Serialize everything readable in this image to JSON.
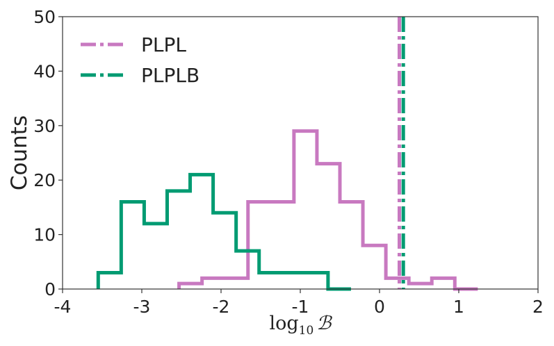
{
  "chart_data": {
    "type": "histogram",
    "title": "",
    "xlabel": "log10 ℬ",
    "xlabel_main": "log",
    "xlabel_sub": "10",
    "xlabel_symbol": "ℬ",
    "ylabel": "Counts",
    "xlim": [
      -4,
      2
    ],
    "ylim": [
      0,
      50
    ],
    "xticks": [
      -4,
      -3,
      -2,
      -1,
      0,
      1,
      2
    ],
    "xtick_labels": [
      "-4",
      "-3",
      "-2",
      "-1",
      "0",
      "1",
      "2"
    ],
    "yticks": [
      0,
      10,
      20,
      30,
      40,
      50
    ],
    "ytick_labels": [
      "0",
      "10",
      "20",
      "30",
      "40",
      "50"
    ],
    "grid": false,
    "legend_position": "top-left",
    "series": [
      {
        "name": "PLPL",
        "color": "#c879c0",
        "style": "step",
        "bin_edges": [
          -2.53,
          -2.24,
          -1.95,
          -1.66,
          -1.37,
          -1.08,
          -0.79,
          -0.5,
          -0.21,
          0.08,
          0.37,
          0.66,
          0.95,
          1.24
        ],
        "counts": [
          1,
          2,
          2,
          16,
          16,
          29,
          23,
          16,
          8,
          2,
          1,
          2,
          0
        ],
        "vline": 0.25
      },
      {
        "name": "PLPLB",
        "color": "#009b72",
        "style": "step",
        "bin_edges": [
          -3.55,
          -3.26,
          -2.97,
          -2.68,
          -2.39,
          -2.1,
          -1.81,
          -1.52,
          -1.23,
          -0.94,
          -0.65,
          -0.36
        ],
        "counts": [
          3,
          16,
          12,
          18,
          21,
          14,
          7,
          3,
          3,
          3,
          0
        ],
        "vline": 0.3
      }
    ]
  }
}
